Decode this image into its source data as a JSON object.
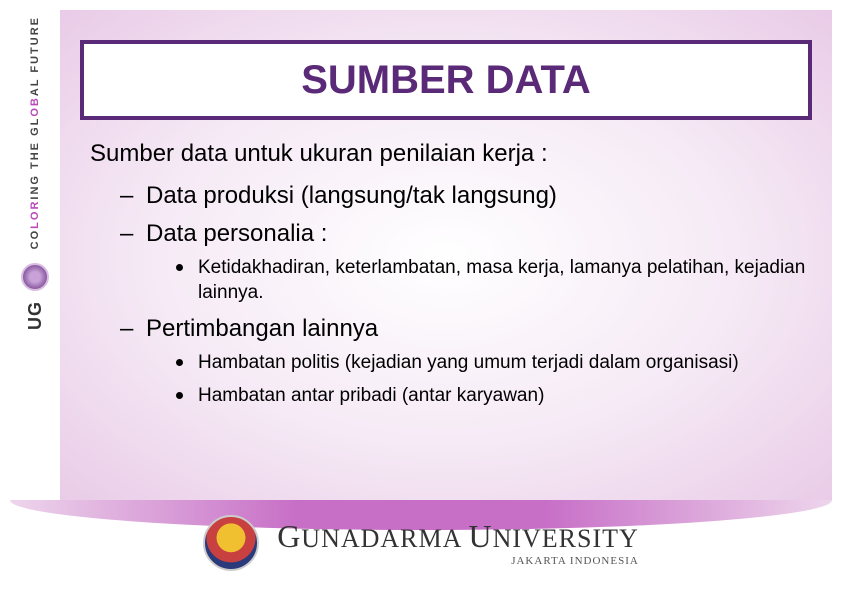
{
  "title": "SUMBER DATA",
  "intro": "Sumber data untuk ukuran penilaian kerja :",
  "bullets": [
    {
      "text": "Data produksi (langsung/tak langsung)"
    },
    {
      "text": "Data personalia :",
      "sub": [
        "Ketidakhadiran, keterlambatan, masa kerja, lamanya pelatihan, kejadian lainnya."
      ]
    },
    {
      "text": "Pertimbangan lainnya",
      "sub": [
        "Hambatan politis (kejadian yang umum terjadi dalam organisasi)",
        "Hambatan antar pribadi (antar karyawan)"
      ]
    }
  ],
  "sidebar": {
    "line1_pre": "CO",
    "line1_accent": "LOR",
    "line1_post": "ING THE GL",
    "line1_accent2": "OB",
    "line1_end": "AL FUTURE",
    "ug": "UG"
  },
  "footer": {
    "university_pre": "G",
    "university": "UNADARMA ",
    "university2_pre": "U",
    "university2": "NIVERSITY",
    "location": "JAKARTA INDONESIA"
  },
  "colors": {
    "title_border": "#5a2a78",
    "title_text": "#5a2a78",
    "accent": "#b94ab8",
    "bg_inner": "#ffffff",
    "bg_outer": "#e9cbe7"
  }
}
